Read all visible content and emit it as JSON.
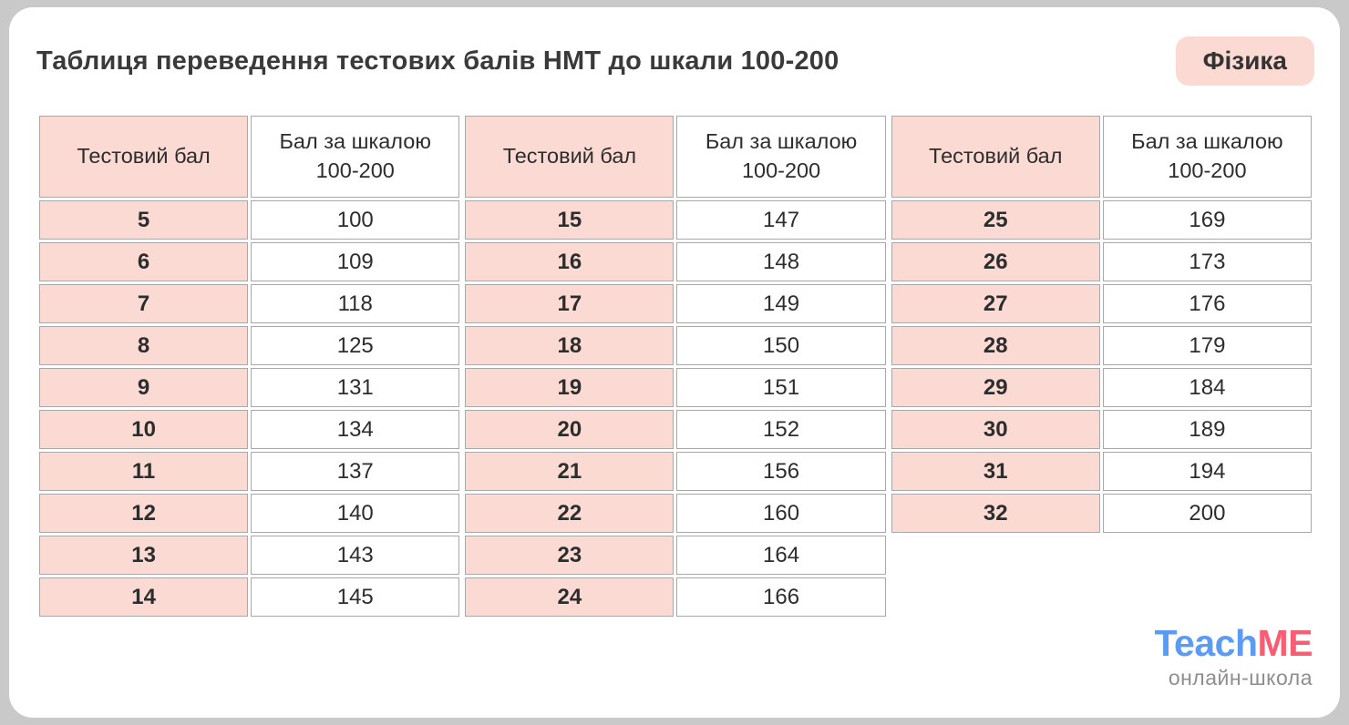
{
  "page": {
    "background_color": "#c9c9c9",
    "card_color": "#ffffff",
    "accent_pink": "#fbdad3",
    "border_gray": "#a8a8a8"
  },
  "header": {
    "title": "Таблиця переведення тестових балів НМТ до шкали 100-200",
    "badge_label": "Фізика"
  },
  "table": {
    "col_headers": {
      "test": "Тестовий бал",
      "scale_line1": "Бал за шкалою",
      "scale_line2": "100-200"
    },
    "groups": [
      {
        "rows": [
          {
            "test": "5",
            "scale": "100"
          },
          {
            "test": "6",
            "scale": "109"
          },
          {
            "test": "7",
            "scale": "118"
          },
          {
            "test": "8",
            "scale": "125"
          },
          {
            "test": "9",
            "scale": "131"
          },
          {
            "test": "10",
            "scale": "134"
          },
          {
            "test": "11",
            "scale": "137"
          },
          {
            "test": "12",
            "scale": "140"
          },
          {
            "test": "13",
            "scale": "143"
          },
          {
            "test": "14",
            "scale": "145"
          }
        ]
      },
      {
        "rows": [
          {
            "test": "15",
            "scale": "147"
          },
          {
            "test": "16",
            "scale": "148"
          },
          {
            "test": "17",
            "scale": "149"
          },
          {
            "test": "18",
            "scale": "150"
          },
          {
            "test": "19",
            "scale": "151"
          },
          {
            "test": "20",
            "scale": "152"
          },
          {
            "test": "21",
            "scale": "156"
          },
          {
            "test": "22",
            "scale": "160"
          },
          {
            "test": "23",
            "scale": "164"
          },
          {
            "test": "24",
            "scale": "166"
          }
        ]
      },
      {
        "rows": [
          {
            "test": "25",
            "scale": "169"
          },
          {
            "test": "26",
            "scale": "173"
          },
          {
            "test": "27",
            "scale": "176"
          },
          {
            "test": "28",
            "scale": "179"
          },
          {
            "test": "29",
            "scale": "184"
          },
          {
            "test": "30",
            "scale": "189"
          },
          {
            "test": "31",
            "scale": "194"
          },
          {
            "test": "32",
            "scale": "200"
          }
        ]
      }
    ]
  },
  "footer": {
    "logo_part1": "Teach",
    "logo_part2": "ME",
    "logo_part1_color": "#5b9bf4",
    "logo_part2_color": "#f75d73",
    "subtitle": "онлайн-школа"
  }
}
